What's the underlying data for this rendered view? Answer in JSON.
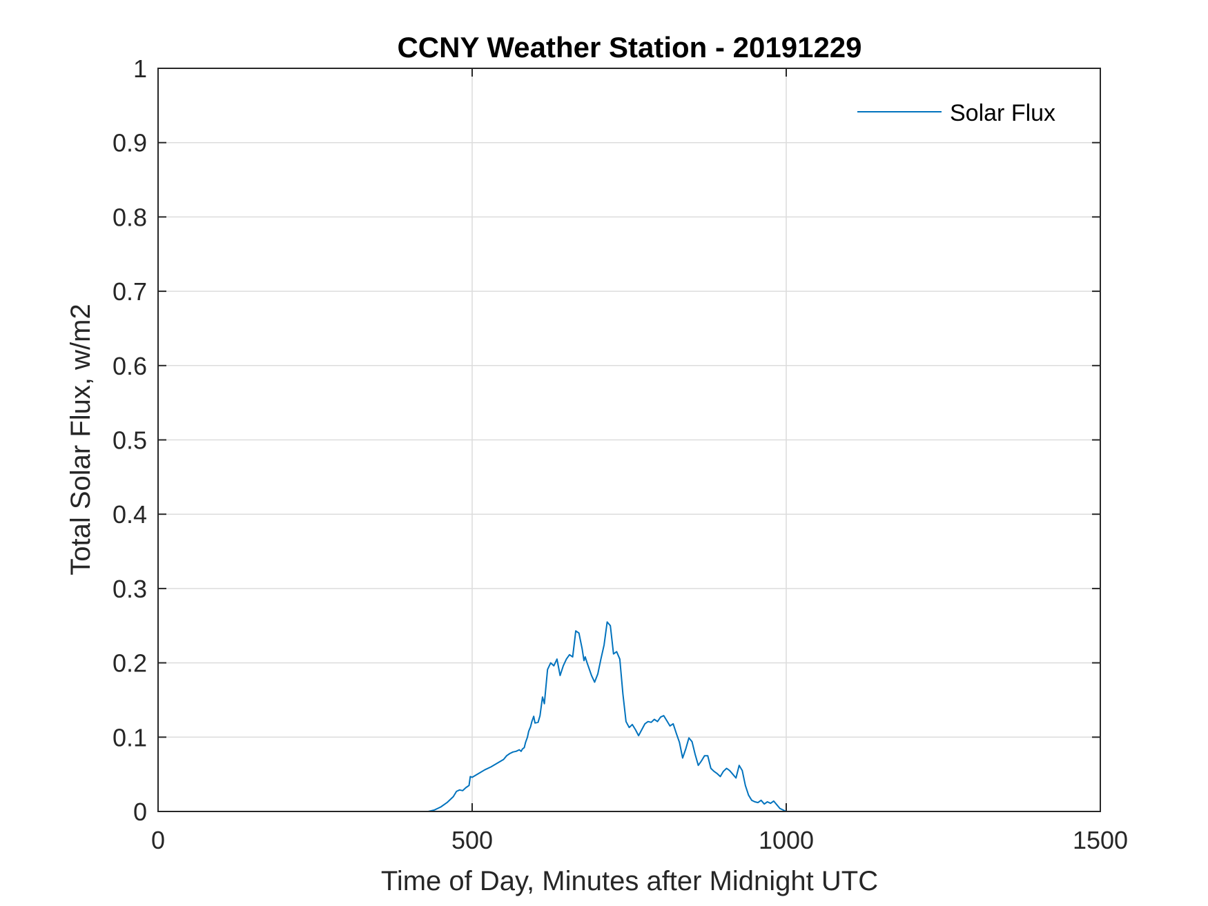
{
  "chart_data": {
    "type": "line",
    "title": "CCNY Weather Station - 20191229",
    "xlabel": "Time of Day, Minutes after Midnight UTC",
    "ylabel": "Total Solar Flux, w/m2",
    "xlim": [
      0,
      1500
    ],
    "ylim": [
      0,
      1
    ],
    "xticks": [
      0,
      500,
      1000,
      1500
    ],
    "xtick_labels": [
      "0",
      "500",
      "1000",
      "1500"
    ],
    "yticks": [
      0,
      0.1,
      0.2,
      0.3,
      0.4,
      0.5,
      0.6,
      0.7,
      0.8,
      0.9,
      1
    ],
    "ytick_labels": [
      "0",
      "0.1",
      "0.2",
      "0.3",
      "0.4",
      "0.5",
      "0.6",
      "0.7",
      "0.8",
      "0.9",
      "1"
    ],
    "grid": true,
    "legend_position": "top-right",
    "series": [
      {
        "name": "Solar Flux",
        "color": "#0072BD",
        "x": [
          0,
          100,
          200,
          300,
          400,
          430,
          440,
          450,
          460,
          470,
          475,
          480,
          485,
          490,
          495,
          497,
          500,
          510,
          520,
          530,
          540,
          550,
          555,
          560,
          565,
          570,
          575,
          578,
          580,
          583,
          585,
          588,
          590,
          593,
          595,
          598,
          600,
          605,
          608,
          612,
          615,
          620,
          625,
          630,
          635,
          640,
          645,
          650,
          655,
          660,
          665,
          670,
          675,
          678,
          680,
          683,
          685,
          690,
          695,
          700,
          705,
          710,
          715,
          720,
          725,
          730,
          735,
          740,
          745,
          750,
          755,
          760,
          765,
          770,
          775,
          780,
          785,
          790,
          795,
          800,
          805,
          810,
          815,
          820,
          825,
          830,
          835,
          840,
          845,
          850,
          855,
          860,
          865,
          870,
          875,
          880,
          885,
          890,
          895,
          900,
          905,
          910,
          915,
          920,
          925,
          930,
          935,
          940,
          945,
          950,
          955,
          960,
          965,
          970,
          975,
          980,
          990,
          1000,
          1100,
          1200,
          1300,
          1400,
          1445
        ],
        "y": [
          0,
          0,
          0,
          0,
          0,
          0,
          0.002,
          0.006,
          0.012,
          0.02,
          0.027,
          0.029,
          0.028,
          0.032,
          0.035,
          0.047,
          0.046,
          0.051,
          0.056,
          0.06,
          0.065,
          0.07,
          0.075,
          0.078,
          0.08,
          0.081,
          0.083,
          0.081,
          0.084,
          0.086,
          0.093,
          0.1,
          0.108,
          0.114,
          0.121,
          0.128,
          0.119,
          0.12,
          0.129,
          0.154,
          0.145,
          0.191,
          0.2,
          0.196,
          0.205,
          0.183,
          0.196,
          0.205,
          0.211,
          0.208,
          0.243,
          0.24,
          0.219,
          0.203,
          0.208,
          0.2,
          0.195,
          0.183,
          0.174,
          0.185,
          0.205,
          0.224,
          0.255,
          0.25,
          0.212,
          0.215,
          0.205,
          0.158,
          0.121,
          0.113,
          0.117,
          0.11,
          0.102,
          0.11,
          0.118,
          0.121,
          0.12,
          0.124,
          0.121,
          0.127,
          0.129,
          0.122,
          0.115,
          0.118,
          0.105,
          0.093,
          0.072,
          0.084,
          0.099,
          0.094,
          0.077,
          0.062,
          0.068,
          0.075,
          0.075,
          0.058,
          0.054,
          0.051,
          0.047,
          0.054,
          0.058,
          0.055,
          0.05,
          0.045,
          0.062,
          0.055,
          0.035,
          0.022,
          0.015,
          0.013,
          0.012,
          0.015,
          0.01,
          0.013,
          0.011,
          0.014,
          0.004,
          0,
          0,
          0,
          0,
          0,
          0
        ]
      }
    ]
  }
}
